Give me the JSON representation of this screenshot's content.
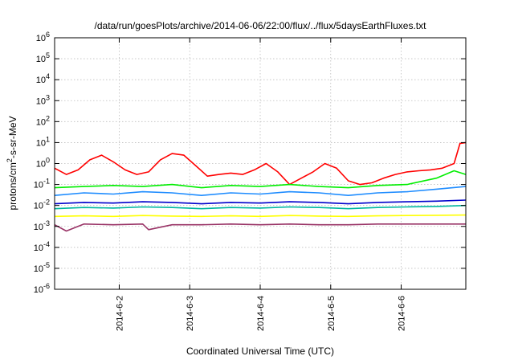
{
  "chart_data": {
    "type": "line",
    "title": "/data/run/goesPlots/archive/2014-06-06/22:00/flux/../flux/5daysEarthFluxes.txt",
    "xlabel": "Coordinated Universal Time (UTC)",
    "ylabel": "protons/cm²-s-sr-MeV",
    "ylabel_parts": {
      "pre": "protons/cm",
      "sup": "2",
      "post": "-s-sr-MeV"
    },
    "yscale": "log",
    "ylim": [
      1e-06,
      1000000.0
    ],
    "y_tick_exponents": [
      -6,
      -5,
      -4,
      -3,
      -2,
      -1,
      0,
      1,
      2,
      3,
      4,
      5,
      6
    ],
    "y_tick_base": "10",
    "xlim": [
      "2014-06-01T02:00",
      "2014-06-06T22:00"
    ],
    "x_ticks": [
      {
        "label": "2014-6-2",
        "at": "2014-06-02T00:00"
      },
      {
        "label": "2014-6-3",
        "at": "2014-06-03T00:00"
      },
      {
        "label": "2014-6-4",
        "at": "2014-06-04T00:00"
      },
      {
        "label": "2014-6-5",
        "at": "2014-06-05T00:00"
      },
      {
        "label": "2014-6-6",
        "at": "2014-06-06T00:00"
      }
    ],
    "grid": true,
    "series": [
      {
        "color": "#ff0000",
        "x": [
          "2014-06-01T02:00",
          "2014-06-01T06:00",
          "2014-06-01T10:00",
          "2014-06-01T14:00",
          "2014-06-01T18:00",
          "2014-06-01T22:00",
          "2014-06-02T02:00",
          "2014-06-02T06:00",
          "2014-06-02T10:00",
          "2014-06-02T14:00",
          "2014-06-02T18:00",
          "2014-06-02T22:00",
          "2014-06-03T02:00",
          "2014-06-03T06:00",
          "2014-06-03T10:00",
          "2014-06-03T14:00",
          "2014-06-03T18:00",
          "2014-06-03T22:00",
          "2014-06-04T02:00",
          "2014-06-04T06:00",
          "2014-06-04T10:00",
          "2014-06-04T14:00",
          "2014-06-04T18:00",
          "2014-06-04T22:00",
          "2014-06-05T02:00",
          "2014-06-05T06:00",
          "2014-06-05T10:00",
          "2014-06-05T14:00",
          "2014-06-05T18:00",
          "2014-06-05T22:00",
          "2014-06-06T02:00",
          "2014-06-06T06:00",
          "2014-06-06T10:00",
          "2014-06-06T14:00",
          "2014-06-06T18:00",
          "2014-06-06T20:00",
          "2014-06-06T22:00"
        ],
        "values": [
          0.6,
          0.3,
          0.5,
          1.5,
          2.5,
          1.2,
          0.5,
          0.3,
          0.4,
          1.5,
          3.0,
          2.5,
          0.8,
          0.25,
          0.3,
          0.35,
          0.3,
          0.5,
          1.0,
          0.4,
          0.1,
          0.2,
          0.4,
          1.0,
          0.6,
          0.15,
          0.1,
          0.12,
          0.2,
          0.3,
          0.4,
          0.45,
          0.5,
          0.6,
          1.0,
          9.0,
          10.0
        ]
      },
      {
        "color": "#00ee00",
        "x": [
          "2014-06-01T02:00",
          "2014-06-01T12:00",
          "2014-06-01T22:00",
          "2014-06-02T08:00",
          "2014-06-02T18:00",
          "2014-06-03T04:00",
          "2014-06-03T14:00",
          "2014-06-04T00:00",
          "2014-06-04T10:00",
          "2014-06-04T20:00",
          "2014-06-05T06:00",
          "2014-06-05T16:00",
          "2014-06-06T02:00",
          "2014-06-06T12:00",
          "2014-06-06T18:00",
          "2014-06-06T22:00"
        ],
        "values": [
          0.07,
          0.08,
          0.09,
          0.08,
          0.1,
          0.07,
          0.09,
          0.08,
          0.1,
          0.08,
          0.07,
          0.09,
          0.1,
          0.2,
          0.45,
          0.3
        ]
      },
      {
        "color": "#1e8cff",
        "x": [
          "2014-06-01T02:00",
          "2014-06-01T12:00",
          "2014-06-01T22:00",
          "2014-06-02T08:00",
          "2014-06-02T18:00",
          "2014-06-03T04:00",
          "2014-06-03T14:00",
          "2014-06-04T00:00",
          "2014-06-04T10:00",
          "2014-06-04T20:00",
          "2014-06-05T06:00",
          "2014-06-05T16:00",
          "2014-06-06T02:00",
          "2014-06-06T12:00",
          "2014-06-06T22:00"
        ],
        "values": [
          0.03,
          0.04,
          0.035,
          0.045,
          0.04,
          0.03,
          0.04,
          0.035,
          0.045,
          0.04,
          0.03,
          0.04,
          0.045,
          0.06,
          0.08
        ]
      },
      {
        "color": "#0000cc",
        "x": [
          "2014-06-01T02:00",
          "2014-06-01T12:00",
          "2014-06-01T22:00",
          "2014-06-02T08:00",
          "2014-06-02T18:00",
          "2014-06-03T04:00",
          "2014-06-03T14:00",
          "2014-06-04T00:00",
          "2014-06-04T10:00",
          "2014-06-04T20:00",
          "2014-06-05T06:00",
          "2014-06-05T16:00",
          "2014-06-06T02:00",
          "2014-06-06T12:00",
          "2014-06-06T22:00"
        ],
        "values": [
          0.012,
          0.014,
          0.013,
          0.015,
          0.014,
          0.012,
          0.014,
          0.013,
          0.015,
          0.014,
          0.012,
          0.014,
          0.015,
          0.016,
          0.018
        ]
      },
      {
        "color": "#00b8a0",
        "x": [
          "2014-06-01T02:00",
          "2014-06-01T12:00",
          "2014-06-01T22:00",
          "2014-06-02T08:00",
          "2014-06-02T18:00",
          "2014-06-03T04:00",
          "2014-06-03T14:00",
          "2014-06-04T00:00",
          "2014-06-04T10:00",
          "2014-06-04T20:00",
          "2014-06-05T06:00",
          "2014-06-05T16:00",
          "2014-06-06T02:00",
          "2014-06-06T12:00",
          "2014-06-06T22:00"
        ],
        "values": [
          0.007,
          0.008,
          0.0075,
          0.0085,
          0.008,
          0.007,
          0.008,
          0.0075,
          0.0085,
          0.008,
          0.007,
          0.008,
          0.0085,
          0.009,
          0.01
        ]
      },
      {
        "color": "#ffff00",
        "x": [
          "2014-06-01T02:00",
          "2014-06-01T12:00",
          "2014-06-01T22:00",
          "2014-06-02T08:00",
          "2014-06-02T18:00",
          "2014-06-03T04:00",
          "2014-06-03T14:00",
          "2014-06-04T00:00",
          "2014-06-04T10:00",
          "2014-06-04T20:00",
          "2014-06-05T06:00",
          "2014-06-05T16:00",
          "2014-06-06T02:00",
          "2014-06-06T12:00",
          "2014-06-06T22:00"
        ],
        "values": [
          0.003,
          0.0032,
          0.003,
          0.0033,
          0.0031,
          0.003,
          0.0032,
          0.003,
          0.0033,
          0.0031,
          0.003,
          0.0032,
          0.0033,
          0.0034,
          0.0035
        ]
      },
      {
        "color": "#993366",
        "x": [
          "2014-06-01T02:00",
          "2014-06-01T06:00",
          "2014-06-01T12:00",
          "2014-06-01T22:00",
          "2014-06-02T08:00",
          "2014-06-02T10:00",
          "2014-06-02T18:00",
          "2014-06-03T04:00",
          "2014-06-03T14:00",
          "2014-06-04T00:00",
          "2014-06-04T10:00",
          "2014-06-04T20:00",
          "2014-06-05T06:00",
          "2014-06-05T16:00",
          "2014-06-06T02:00",
          "2014-06-06T12:00",
          "2014-06-06T22:00"
        ],
        "values": [
          0.0012,
          0.0006,
          0.0013,
          0.0012,
          0.0013,
          0.0007,
          0.0012,
          0.0012,
          0.0013,
          0.0012,
          0.0013,
          0.0012,
          0.0012,
          0.0013,
          0.0013,
          0.0013,
          0.0013
        ]
      }
    ]
  }
}
